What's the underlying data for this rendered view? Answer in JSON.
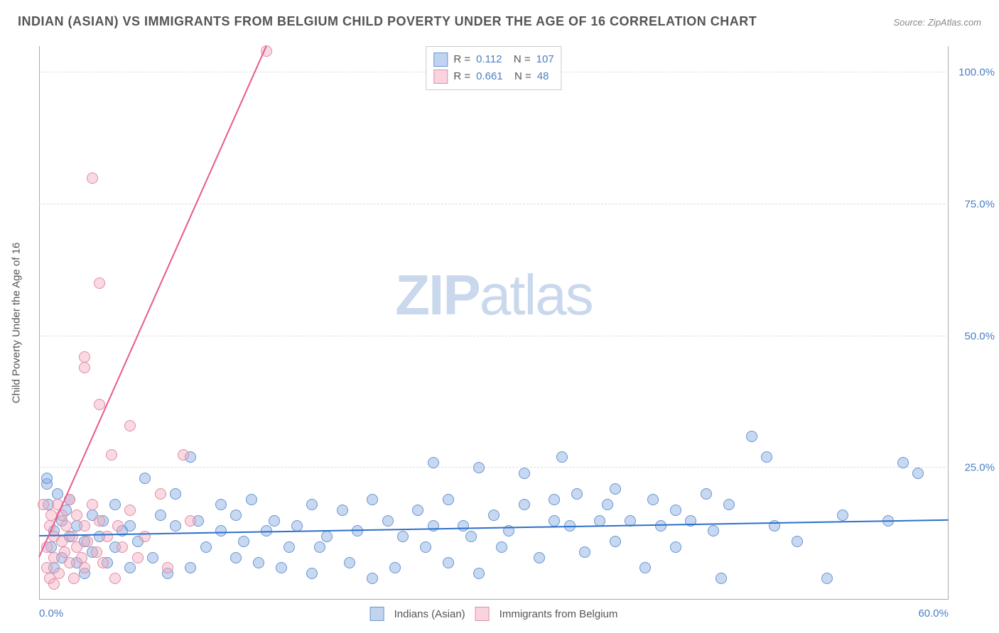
{
  "title": "INDIAN (ASIAN) VS IMMIGRANTS FROM BELGIUM CHILD POVERTY UNDER THE AGE OF 16 CORRELATION CHART",
  "source": "Source: ZipAtlas.com",
  "y_axis_label": "Child Poverty Under the Age of 16",
  "watermark_bold": "ZIP",
  "watermark_light": "atlas",
  "chart": {
    "type": "scatter",
    "xlim": [
      0,
      60
    ],
    "ylim": [
      0,
      105
    ],
    "y_ticks": [
      25,
      50,
      75,
      100
    ],
    "y_tick_labels": [
      "25.0%",
      "50.0%",
      "75.0%",
      "100.0%"
    ],
    "x_ticks": [
      0,
      60
    ],
    "x_tick_labels": [
      "0.0%",
      "60.0%"
    ],
    "grid_color": "#dddddd",
    "background": "#ffffff",
    "series": [
      {
        "name": "Indians (Asian)",
        "color_fill": "rgba(130, 170, 226, 0.45)",
        "color_stroke": "#6a94cf",
        "class": "blue",
        "marker_size": 16,
        "R": "0.112",
        "N": "107",
        "trend": {
          "x1": 0,
          "y1": 12,
          "x2": 60,
          "y2": 15
        },
        "points": [
          [
            0.5,
            22
          ],
          [
            0.5,
            23
          ],
          [
            0.6,
            18
          ],
          [
            0.8,
            10
          ],
          [
            1,
            13
          ],
          [
            1,
            6
          ],
          [
            1.2,
            20
          ],
          [
            1.5,
            15
          ],
          [
            1.5,
            8
          ],
          [
            1.8,
            17
          ],
          [
            2,
            12
          ],
          [
            2,
            19
          ],
          [
            2.5,
            7
          ],
          [
            2.5,
            14
          ],
          [
            3,
            5
          ],
          [
            3,
            11
          ],
          [
            3.5,
            16
          ],
          [
            3.5,
            9
          ],
          [
            4,
            12
          ],
          [
            4.2,
            15
          ],
          [
            4.5,
            7
          ],
          [
            5,
            18
          ],
          [
            5,
            10
          ],
          [
            5.5,
            13
          ],
          [
            6,
            6
          ],
          [
            6,
            14
          ],
          [
            6.5,
            11
          ],
          [
            7,
            23
          ],
          [
            7.5,
            8
          ],
          [
            8,
            16
          ],
          [
            8.5,
            5
          ],
          [
            9,
            14
          ],
          [
            9,
            20
          ],
          [
            10,
            27
          ],
          [
            10,
            6
          ],
          [
            10.5,
            15
          ],
          [
            11,
            10
          ],
          [
            12,
            18
          ],
          [
            12,
            13
          ],
          [
            13,
            16
          ],
          [
            13,
            8
          ],
          [
            13.5,
            11
          ],
          [
            14,
            19
          ],
          [
            14.5,
            7
          ],
          [
            15,
            13
          ],
          [
            15.5,
            15
          ],
          [
            16,
            6
          ],
          [
            16.5,
            10
          ],
          [
            17,
            14
          ],
          [
            18,
            18
          ],
          [
            18,
            5
          ],
          [
            18.5,
            10
          ],
          [
            19,
            12
          ],
          [
            20,
            17
          ],
          [
            20.5,
            7
          ],
          [
            21,
            13
          ],
          [
            22,
            4
          ],
          [
            22,
            19
          ],
          [
            23,
            15
          ],
          [
            23.5,
            6
          ],
          [
            24,
            12
          ],
          [
            25,
            17
          ],
          [
            25.5,
            10
          ],
          [
            26,
            14
          ],
          [
            26,
            26
          ],
          [
            27,
            19
          ],
          [
            27,
            7
          ],
          [
            28,
            14
          ],
          [
            28.5,
            12
          ],
          [
            29,
            25
          ],
          [
            29,
            5
          ],
          [
            30,
            16
          ],
          [
            30.5,
            10
          ],
          [
            31,
            13
          ],
          [
            32,
            18
          ],
          [
            32,
            24
          ],
          [
            33,
            8
          ],
          [
            34,
            19
          ],
          [
            34,
            15
          ],
          [
            34.5,
            27
          ],
          [
            35,
            14
          ],
          [
            35.5,
            20
          ],
          [
            36,
            9
          ],
          [
            37,
            15
          ],
          [
            37.5,
            18
          ],
          [
            38,
            21
          ],
          [
            38,
            11
          ],
          [
            39,
            15
          ],
          [
            40,
            6
          ],
          [
            40.5,
            19
          ],
          [
            41,
            14
          ],
          [
            42,
            17
          ],
          [
            42,
            10
          ],
          [
            43,
            15
          ],
          [
            44,
            20
          ],
          [
            44.5,
            13
          ],
          [
            45,
            4
          ],
          [
            45.5,
            18
          ],
          [
            47,
            31
          ],
          [
            48,
            27
          ],
          [
            48.5,
            14
          ],
          [
            50,
            11
          ],
          [
            52,
            4
          ],
          [
            53,
            16
          ],
          [
            56,
            15
          ],
          [
            57,
            26
          ],
          [
            58,
            24
          ]
        ]
      },
      {
        "name": "Immigrants from Belgium",
        "color_fill": "rgba(243, 170, 190, 0.45)",
        "color_stroke": "#e08ca3",
        "class": "pink",
        "marker_size": 16,
        "R": "0.661",
        "N": "48",
        "trend": {
          "x1": 0,
          "y1": 8,
          "x2": 15,
          "y2": 105
        },
        "points": [
          [
            0.3,
            18
          ],
          [
            0.5,
            10
          ],
          [
            0.5,
            6
          ],
          [
            0.7,
            14
          ],
          [
            0.7,
            4
          ],
          [
            0.8,
            16
          ],
          [
            1,
            12
          ],
          [
            1,
            8
          ],
          [
            1,
            3
          ],
          [
            1.2,
            18
          ],
          [
            1.3,
            5
          ],
          [
            1.5,
            11
          ],
          [
            1.5,
            16
          ],
          [
            1.7,
            9
          ],
          [
            1.8,
            14
          ],
          [
            2,
            19
          ],
          [
            2,
            7
          ],
          [
            2.2,
            12
          ],
          [
            2.3,
            4
          ],
          [
            2.5,
            10
          ],
          [
            2.5,
            16
          ],
          [
            2.8,
            8
          ],
          [
            3,
            44
          ],
          [
            3,
            46
          ],
          [
            3,
            14
          ],
          [
            3,
            6
          ],
          [
            3.2,
            11
          ],
          [
            3.5,
            80
          ],
          [
            3.5,
            18
          ],
          [
            3.8,
            9
          ],
          [
            4,
            15
          ],
          [
            4,
            37
          ],
          [
            4,
            60
          ],
          [
            4.2,
            7
          ],
          [
            4.5,
            12
          ],
          [
            4.8,
            27.5
          ],
          [
            5,
            4
          ],
          [
            5.2,
            14
          ],
          [
            5.5,
            10
          ],
          [
            6,
            33
          ],
          [
            6,
            17
          ],
          [
            6.5,
            8
          ],
          [
            7,
            12
          ],
          [
            8,
            20
          ],
          [
            8.5,
            6
          ],
          [
            9.5,
            27.5
          ],
          [
            10,
            15
          ],
          [
            15,
            104
          ]
        ]
      }
    ]
  },
  "legend_bottom": [
    {
      "class": "blue",
      "label": "Indians (Asian)"
    },
    {
      "class": "pink",
      "label": "Immigrants from Belgium"
    }
  ],
  "legend_top_rows": [
    {
      "class": "blue",
      "r_label": "R  =",
      "r_val": "0.112",
      "n_label": "N =",
      "n_val": "107"
    },
    {
      "class": "pink",
      "r_label": "R  =",
      "r_val": "0.661",
      "n_label": "N =",
      "n_val": " 48"
    }
  ]
}
